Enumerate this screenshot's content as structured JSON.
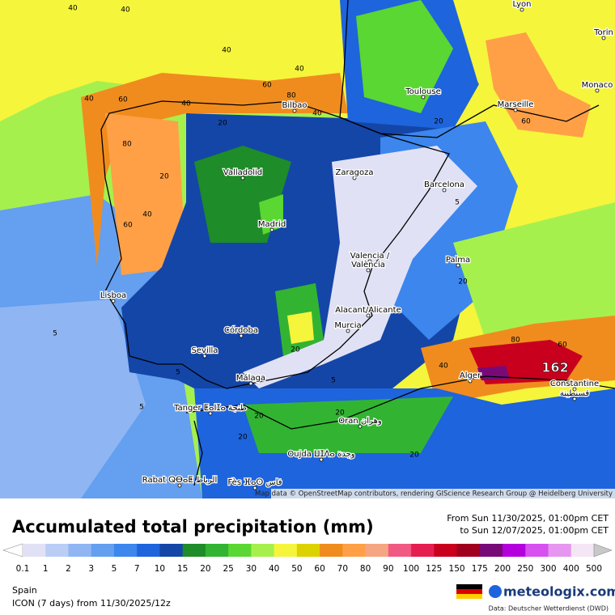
{
  "map": {
    "cities": [
      "Lyon",
      "Torin",
      "Monaco",
      "Toulouse",
      "Marseille",
      "Bilbao",
      "Valladolid",
      "Zaragoza",
      "Barcelona",
      "Madrid",
      "Lisboa",
      "Valencia /",
      "València",
      "Palma",
      "Alacant/Alicante",
      "Murcia",
      "Córdoba",
      "Sevilla",
      "Málaga",
      "Alger",
      "Constantine",
      "قسنطينة",
      "Tanger ⵟⴰⵏⵊⴰ طنجة",
      "Oran وهران",
      "Oujda ⵡⵊⴷⴰ وجدة",
      "Rabat ⵕⴱⴰⵟ الرباط",
      "Fès ⴼⴰⵙ فاس"
    ],
    "max_label": "162",
    "contour_labels": [
      40,
      40,
      40,
      40,
      60,
      80,
      40,
      60,
      40,
      20,
      40,
      80,
      60,
      40,
      20,
      5,
      5,
      5,
      20,
      5,
      20,
      40,
      80,
      60,
      20,
      20,
      20,
      60,
      20,
      5,
      20
    ],
    "attribution": "Map data © OpenStreetMap contributors, rendering GIScience Research Group @ Heidelberg University"
  },
  "legend": {
    "title": "Accumulated total precipitation (mm)",
    "period_from": "From Sun 11/30/2025, 01:00pm CET",
    "period_to": "to Sun 12/07/2025, 01:00pm CET",
    "ticks": [
      0.1,
      1,
      2,
      3,
      5,
      7,
      10,
      15,
      20,
      25,
      30,
      40,
      50,
      60,
      70,
      80,
      90,
      100,
      125,
      150,
      175,
      200,
      250,
      300,
      400,
      500
    ],
    "colors": [
      "#e1e1f5",
      "#b9cdf5",
      "#8fb6f2",
      "#649ff0",
      "#3c86ee",
      "#1e64dc",
      "#1446a8",
      "#1e8c28",
      "#32b432",
      "#5ad732",
      "#a6f04e",
      "#f5f53c",
      "#dcd200",
      "#f08c1e",
      "#ffa046",
      "#f5a582",
      "#f05a82",
      "#e61e50",
      "#c8001e",
      "#a0001e",
      "#780a78",
      "#b400dc",
      "#d750f0",
      "#e696f0",
      "#f5e6f5"
    ]
  },
  "footer": {
    "region": "Spain",
    "model": "ICON (7 days) from 11/30/2025/12z",
    "brand": "meteologix.com",
    "source": "Data: Deutscher Wetterdienst (DWD)"
  }
}
